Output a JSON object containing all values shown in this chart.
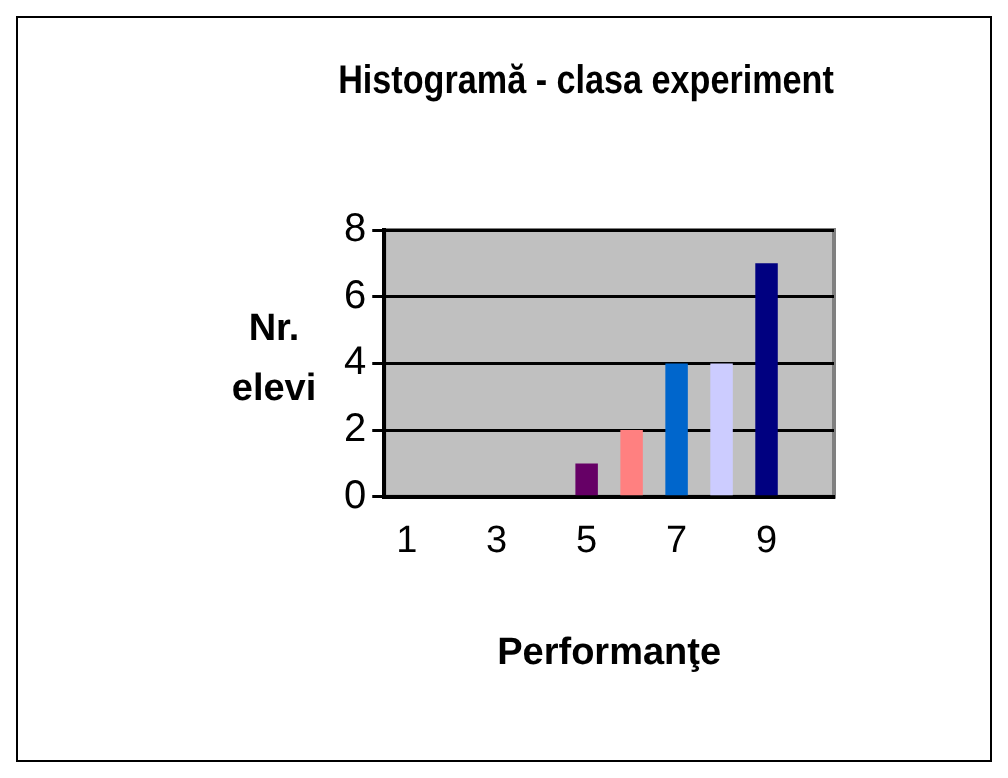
{
  "chart_data": {
    "type": "bar",
    "title": "Histogramă - clasa experiment",
    "xlabel": "Performanţe",
    "ylabel": "Nr. elevi",
    "categories": [
      "1",
      null,
      "3",
      null,
      "5",
      null,
      "7",
      null,
      "9",
      null
    ],
    "values": [
      0,
      0,
      0,
      0,
      1,
      2,
      4,
      4,
      7,
      0
    ],
    "colors": [
      "#000000",
      "#000000",
      "#000000",
      "#000000",
      "#660066",
      "#ff8080",
      "#0066cc",
      "#ccccff",
      "#000080",
      "#000000"
    ],
    "ylim": [
      0,
      8
    ],
    "yticks": [
      0,
      2,
      4,
      6,
      8
    ],
    "grid": "y",
    "legend": false
  }
}
